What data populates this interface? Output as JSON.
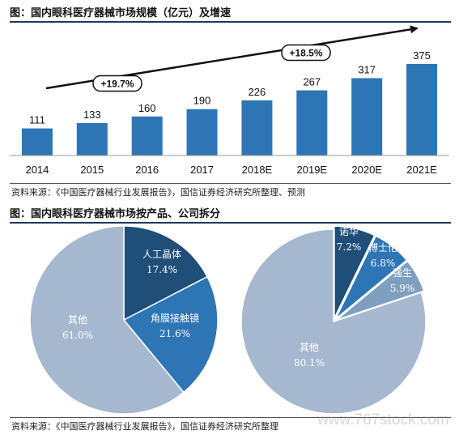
{
  "figure1": {
    "title": "图：国内眼科医疗器械市场规模（亿元）及增速",
    "source": "资料来源：《中国医疗器械行业发展报告》，国信证券经济研究所整理、预测"
  },
  "figure2": {
    "title": "图：国内眼科医疗器械市场按产品、公司拆分",
    "source": "资料来源：《中国医疗器械行业发展报告》，国信证券经济研究所整理"
  },
  "watermark": "www.767stock.com",
  "colors": {
    "bar": "#2e75b6",
    "pie_dark": "#1f4e79",
    "pie_mid": "#2e75b6",
    "pie_light": "#7f9fc0",
    "pie_gray": "#a6b8cf"
  },
  "chart_data": [
    {
      "type": "bar",
      "categories": [
        "2014",
        "2015",
        "2016",
        "2017",
        "2018E",
        "2019E",
        "2020E",
        "2021E"
      ],
      "values": [
        111,
        133,
        160,
        190,
        226,
        267,
        317,
        375
      ],
      "title": "",
      "xlabel": "",
      "ylabel": "",
      "ylim": [
        0,
        375
      ],
      "grid": false,
      "annotations": [
        "+19.7%",
        "+18.5%"
      ]
    },
    {
      "type": "pie",
      "labels": [
        "人工晶体",
        "角膜接触镜",
        "其他"
      ],
      "values": [
        17.4,
        21.6,
        61.0
      ],
      "value_labels": [
        "17.4%",
        "21.6%",
        "61.0%"
      ]
    },
    {
      "type": "pie",
      "labels": [
        "诺华",
        "博士伦",
        "强生",
        "其他"
      ],
      "values": [
        7.2,
        6.8,
        5.9,
        80.1
      ],
      "value_labels": [
        "7.2%",
        "6.8%",
        "5.9%",
        "80.1%"
      ]
    }
  ]
}
